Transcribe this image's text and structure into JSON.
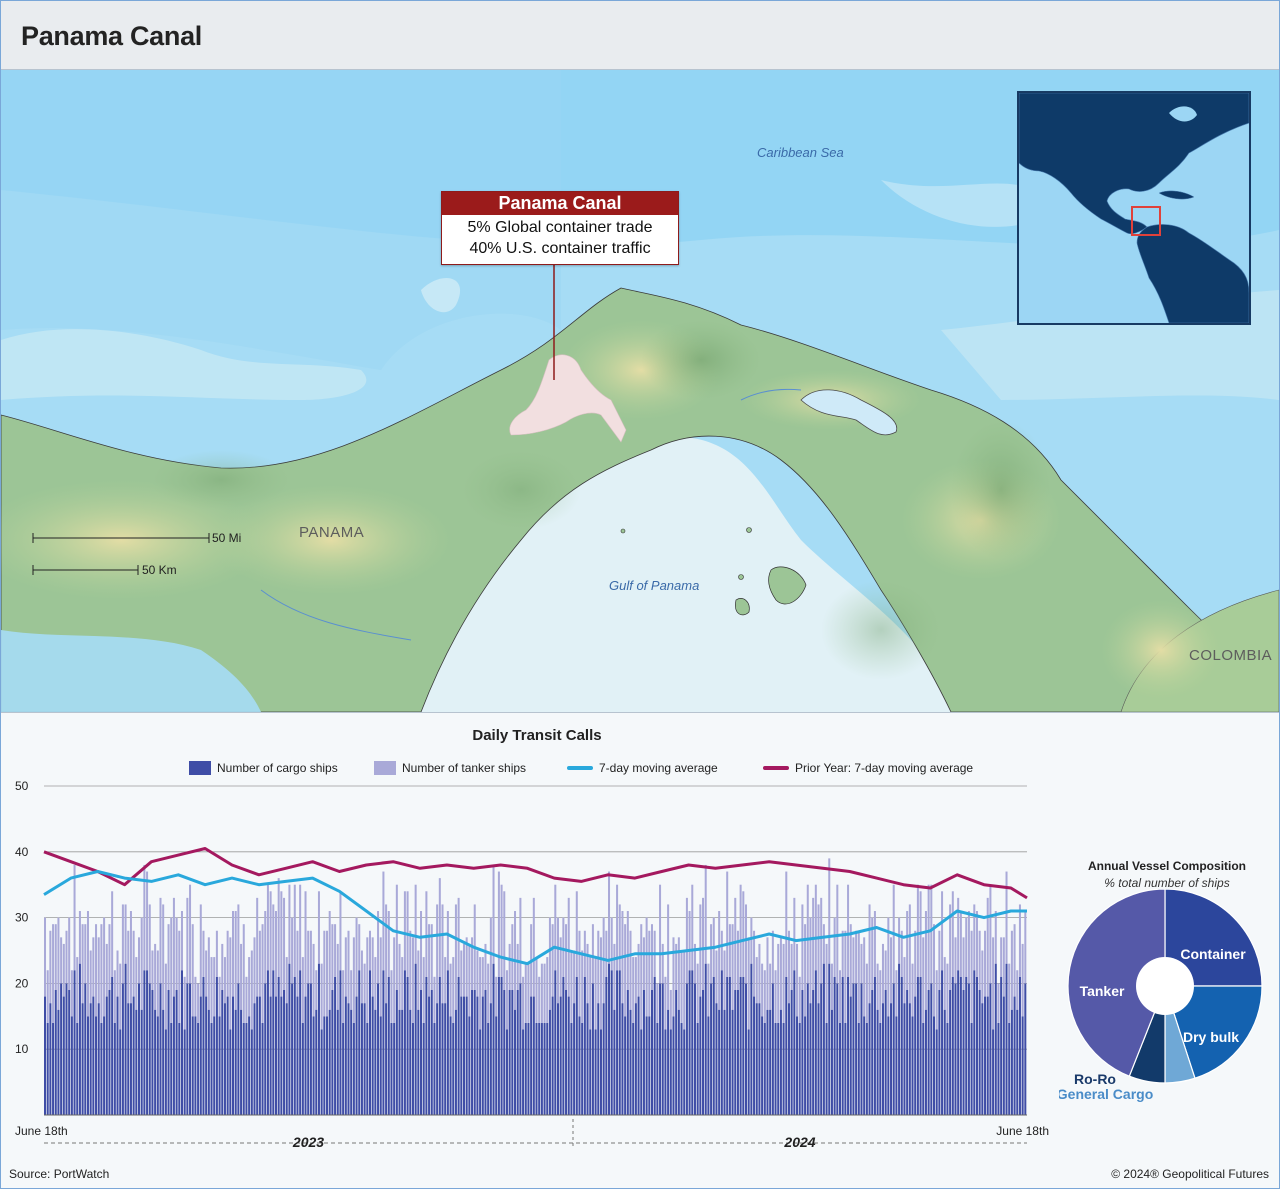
{
  "header": {
    "title": "Panama Canal"
  },
  "map": {
    "labels": {
      "caribbean": "Caribbean Sea",
      "gulf": "Gulf of Panama",
      "panama": "PANAMA",
      "colombia": "COLOMBIA"
    },
    "scale": {
      "miles": "50 Mi",
      "km": "50 Km"
    },
    "callout": {
      "title": "Panama Canal",
      "line1": "5% Global container trade",
      "line2": "40% U.S. container traffic"
    },
    "colors": {
      "ocean": "#a6dcf5",
      "land": "#9cc596",
      "canal": "#f2dfe0",
      "callout": "#9b1b1b"
    }
  },
  "chart_data": [
    {
      "type": "bar",
      "title": "Daily Transit Calls",
      "legend": {
        "cargo": "Number of cargo ships",
        "tanker": "Number of tanker ships",
        "ma7": "7-day moving average",
        "prior": "Prior Year: 7-day moving average"
      },
      "colors": {
        "cargo": "#3f4da6",
        "tanker": "#a9a9d8",
        "ma7": "#29a8dc",
        "prior": "#a4195f"
      },
      "yticks": [
        "10",
        "20",
        "30",
        "40",
        "50"
      ],
      "ylim": [
        0,
        50
      ],
      "x_labels": {
        "start": "June 18th",
        "end": "June 18th"
      },
      "years": [
        "2023",
        "2024"
      ],
      "stacked": true,
      "days": 366,
      "series_summary": [
        {
          "name": "Number of cargo ships",
          "typical_range": [
            13,
            23
          ]
        },
        {
          "name": "Number of tanker ships",
          "typical_range": [
            6,
            16
          ]
        }
      ],
      "ma7_points": [
        [
          0,
          33.5
        ],
        [
          10,
          36
        ],
        [
          20,
          37
        ],
        [
          30,
          36
        ],
        [
          40,
          35.5
        ],
        [
          50,
          36.5
        ],
        [
          60,
          35
        ],
        [
          70,
          36
        ],
        [
          80,
          35
        ],
        [
          90,
          35.5
        ],
        [
          100,
          36
        ],
        [
          110,
          34
        ],
        [
          120,
          31
        ],
        [
          130,
          28
        ],
        [
          140,
          27
        ],
        [
          150,
          27.5
        ],
        [
          160,
          25.5
        ],
        [
          170,
          24
        ],
        [
          180,
          23
        ],
        [
          190,
          25.5
        ],
        [
          200,
          24.5
        ],
        [
          210,
          23.5
        ],
        [
          220,
          24.5
        ],
        [
          230,
          24.5
        ],
        [
          240,
          25
        ],
        [
          250,
          25.5
        ],
        [
          260,
          26.5
        ],
        [
          270,
          27.5
        ],
        [
          280,
          26.5
        ],
        [
          290,
          27
        ],
        [
          300,
          27.5
        ],
        [
          310,
          28.5
        ],
        [
          320,
          27
        ],
        [
          330,
          28
        ],
        [
          340,
          31
        ],
        [
          350,
          30
        ],
        [
          360,
          31
        ],
        [
          366,
          31
        ]
      ],
      "prior_points": [
        [
          0,
          40
        ],
        [
          10,
          38.5
        ],
        [
          20,
          37
        ],
        [
          30,
          35
        ],
        [
          40,
          38.5
        ],
        [
          50,
          39.5
        ],
        [
          60,
          40.5
        ],
        [
          70,
          38
        ],
        [
          80,
          36.5
        ],
        [
          90,
          37.5
        ],
        [
          100,
          38.5
        ],
        [
          110,
          37
        ],
        [
          120,
          38
        ],
        [
          130,
          38.5
        ],
        [
          140,
          37.5
        ],
        [
          150,
          38
        ],
        [
          160,
          37.5
        ],
        [
          170,
          38
        ],
        [
          180,
          37.5
        ],
        [
          190,
          36
        ],
        [
          200,
          35.5
        ],
        [
          210,
          36.5
        ],
        [
          220,
          36
        ],
        [
          230,
          37
        ],
        [
          240,
          38
        ],
        [
          250,
          37.5
        ],
        [
          260,
          38
        ],
        [
          270,
          38.5
        ],
        [
          280,
          38
        ],
        [
          290,
          37.5
        ],
        [
          300,
          37
        ],
        [
          310,
          36
        ],
        [
          320,
          35
        ],
        [
          330,
          34.5
        ],
        [
          340,
          36.5
        ],
        [
          350,
          35
        ],
        [
          360,
          34.5
        ],
        [
          366,
          33
        ]
      ]
    },
    {
      "type": "pie",
      "title": "Annual Vessel Composition",
      "subtitle": "% total number of ships",
      "categories": [
        "Container",
        "Dry bulk",
        "General Cargo",
        "Ro-Ro",
        "Tanker"
      ],
      "values": [
        25,
        20,
        5,
        6,
        44
      ],
      "colors": [
        "#2c469c",
        "#1462b0",
        "#6fa8d6",
        "#123a6a",
        "#5559a8"
      ],
      "label_colors": [
        "#ffffff",
        "#ffffff",
        "#4a8cc8",
        "#1a3a6a",
        "#ffffff"
      ]
    }
  ],
  "footer": {
    "source": "Source: PortWatch",
    "copyright": "© 2024® Geopolitical Futures"
  }
}
